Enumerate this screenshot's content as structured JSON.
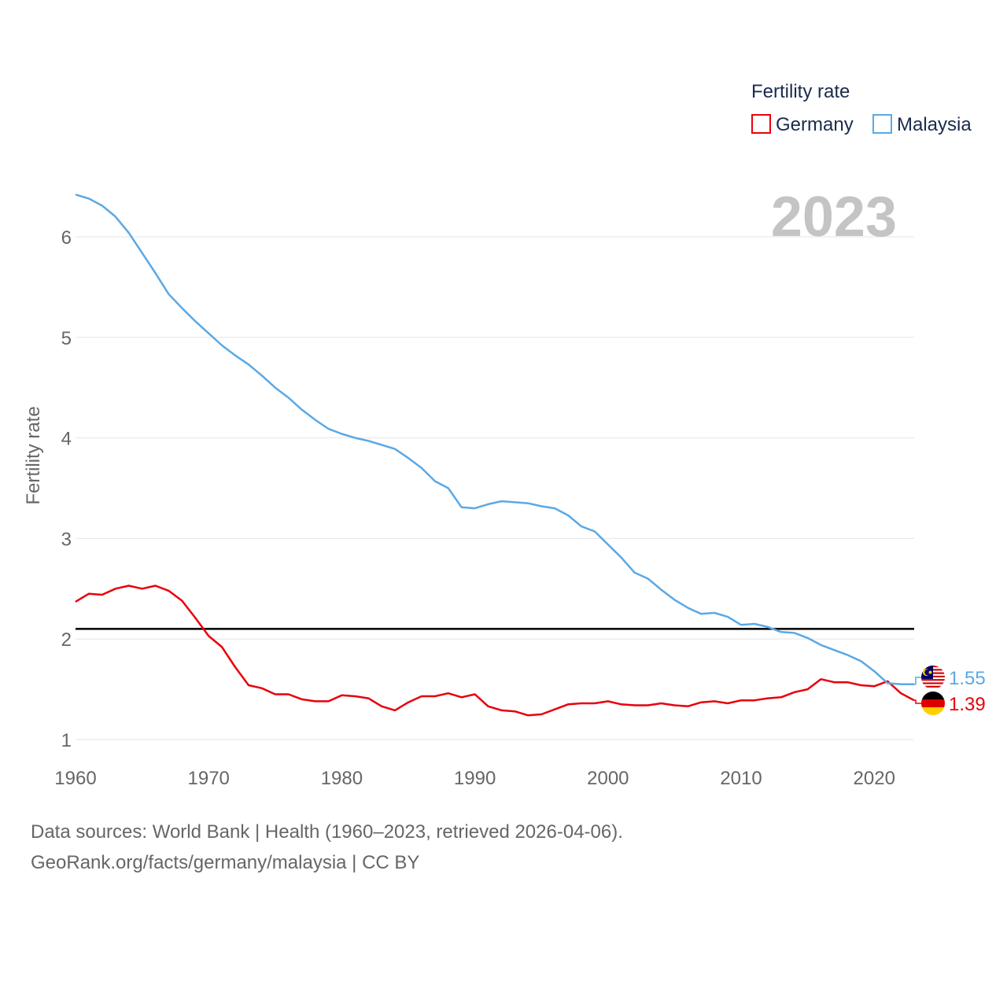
{
  "chart_data": {
    "type": "line",
    "title": "Fertility rate",
    "ylabel": "Fertility rate",
    "xlabel": "",
    "watermark_year": "2023",
    "xlim": [
      1960,
      2023
    ],
    "ylim": [
      1,
      6.5
    ],
    "xticks": [
      1960,
      1970,
      1980,
      1990,
      2000,
      2010,
      2020
    ],
    "yticks": [
      1,
      2,
      3,
      4,
      5,
      6
    ],
    "reference_line": {
      "value": 2.1,
      "color": "#000000"
    },
    "legend_position": "top-right",
    "x": [
      1960,
      1961,
      1962,
      1963,
      1964,
      1965,
      1966,
      1967,
      1968,
      1969,
      1970,
      1971,
      1972,
      1973,
      1974,
      1975,
      1976,
      1977,
      1978,
      1979,
      1980,
      1981,
      1982,
      1983,
      1984,
      1985,
      1986,
      1987,
      1988,
      1989,
      1990,
      1991,
      1992,
      1993,
      1994,
      1995,
      1996,
      1997,
      1998,
      1999,
      2000,
      2001,
      2002,
      2003,
      2004,
      2005,
      2006,
      2007,
      2008,
      2009,
      2010,
      2011,
      2012,
      2013,
      2014,
      2015,
      2016,
      2017,
      2018,
      2019,
      2020,
      2021,
      2022,
      2023
    ],
    "series": [
      {
        "name": "Germany",
        "color": "#e8000b",
        "end_label": "1.39",
        "flag": "germany-flag",
        "values": [
          2.37,
          2.45,
          2.44,
          2.5,
          2.53,
          2.5,
          2.53,
          2.48,
          2.38,
          2.21,
          2.03,
          1.92,
          1.72,
          1.54,
          1.51,
          1.45,
          1.45,
          1.4,
          1.38,
          1.38,
          1.44,
          1.43,
          1.41,
          1.33,
          1.29,
          1.37,
          1.43,
          1.43,
          1.46,
          1.42,
          1.45,
          1.33,
          1.29,
          1.28,
          1.24,
          1.25,
          1.3,
          1.35,
          1.36,
          1.36,
          1.38,
          1.35,
          1.34,
          1.34,
          1.36,
          1.34,
          1.33,
          1.37,
          1.38,
          1.36,
          1.39,
          1.39,
          1.41,
          1.42,
          1.47,
          1.5,
          1.6,
          1.57,
          1.57,
          1.54,
          1.53,
          1.58,
          1.46,
          1.39
        ]
      },
      {
        "name": "Malaysia",
        "color": "#5aa9e6",
        "end_label": "1.55",
        "flag": "malaysia-flag",
        "values": [
          6.42,
          6.38,
          6.31,
          6.2,
          6.04,
          5.84,
          5.64,
          5.43,
          5.29,
          5.16,
          5.04,
          4.92,
          4.82,
          4.73,
          4.62,
          4.5,
          4.4,
          4.28,
          4.18,
          4.09,
          4.04,
          4.0,
          3.97,
          3.93,
          3.89,
          3.8,
          3.7,
          3.57,
          3.5,
          3.31,
          3.3,
          3.34,
          3.37,
          3.36,
          3.35,
          3.32,
          3.3,
          3.23,
          3.12,
          3.07,
          2.94,
          2.81,
          2.66,
          2.6,
          2.49,
          2.39,
          2.31,
          2.25,
          2.26,
          2.22,
          2.14,
          2.15,
          2.12,
          2.07,
          2.06,
          2.01,
          1.94,
          1.89,
          1.84,
          1.78,
          1.68,
          1.56,
          1.55,
          1.55
        ]
      }
    ]
  },
  "footer": {
    "sources": "Data sources: World Bank | Health (1960–2023, retrieved 2026-04-06).",
    "credit": "GeoRank.org/facts/germany/malaysia | CC BY"
  }
}
